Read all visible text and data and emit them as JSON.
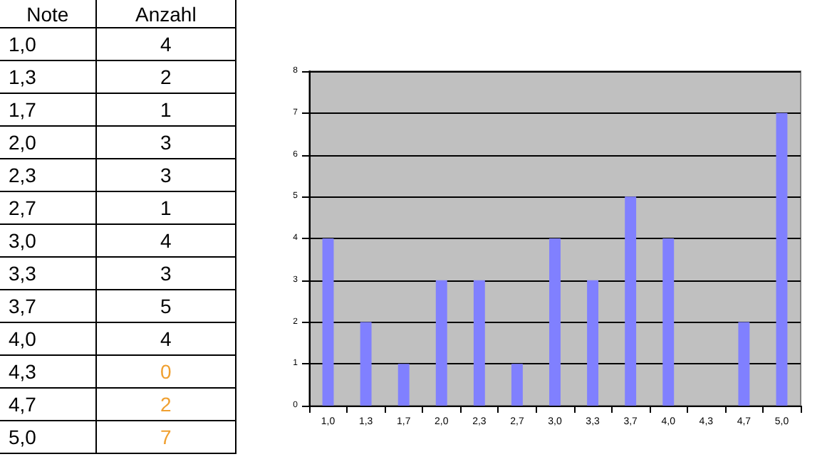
{
  "chart_data": [
    {
      "type": "other",
      "xlabel": "Note",
      "ylabel": "Anzahl",
      "categories": [
        "1,0",
        "1,3",
        "1,7",
        "2,0",
        "2,3",
        "2,7",
        "3,0",
        "3,3",
        "3,7",
        "4,0",
        "4,3",
        "4,7",
        "5,0"
      ],
      "value_labels": [
        "4",
        "2",
        "1",
        "3",
        "3",
        "1",
        "4",
        "3",
        "5",
        "4",
        "0",
        "2",
        "7"
      ],
      "data_labels": true,
      "colors": [
        "#000000",
        "#000000",
        "#000000",
        "#000000",
        "#000000",
        "#000000",
        "#000000",
        "#000000",
        "#000000",
        "#000000",
        "#f0a030",
        "#f0a030",
        "#f0a030"
      ]
    },
    {
      "type": "bar",
      "categories": [
        "1,0",
        "1,3",
        "1,7",
        "2,0",
        "2,3",
        "2,7",
        "3,0",
        "3,3",
        "3,7",
        "4,0",
        "4,3",
        "4,7",
        "5,0"
      ],
      "values": [
        4,
        2,
        1,
        3,
        3,
        1,
        4,
        3,
        5,
        4,
        0,
        2,
        7
      ],
      "color": "#8080ff",
      "ylim": [
        0,
        8
      ],
      "yticks": [
        0,
        1,
        2,
        3,
        4,
        5,
        6,
        7,
        8
      ],
      "grid": "y"
    }
  ]
}
